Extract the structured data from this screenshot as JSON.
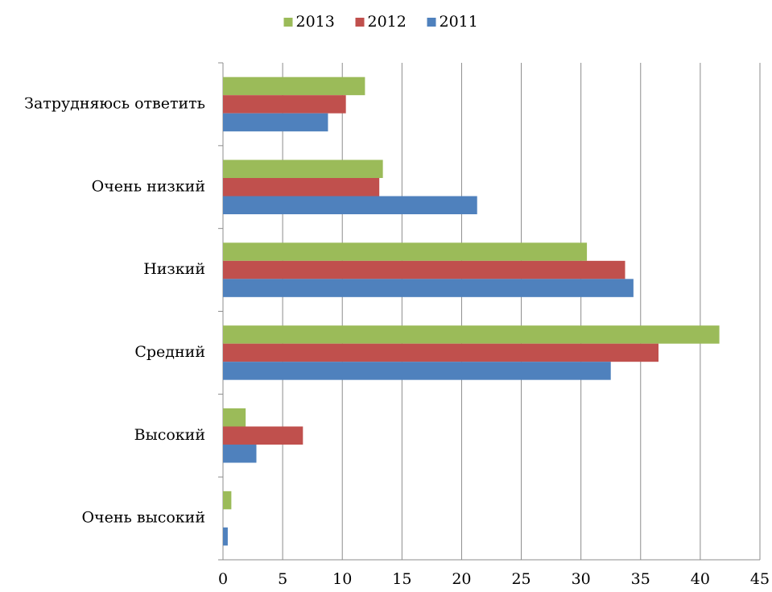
{
  "chart_data": {
    "type": "bar",
    "orientation": "horizontal",
    "categories": [
      "Затрудняюсь ответить",
      "Очень низкий",
      "Низкий",
      "Средний",
      "Высокий",
      "Очень высокий"
    ],
    "series": [
      {
        "name": "2013",
        "color": "#9bbb59",
        "values": [
          11.9,
          13.4,
          30.5,
          41.6,
          1.9,
          0.7
        ]
      },
      {
        "name": "2012",
        "color": "#c0504d",
        "values": [
          10.3,
          13.1,
          33.7,
          36.5,
          6.7,
          0
        ]
      },
      {
        "name": "2011",
        "color": "#4f81bd",
        "values": [
          8.8,
          21.3,
          34.4,
          32.5,
          2.8,
          0.4
        ]
      }
    ],
    "xlim": [
      0,
      45
    ],
    "xticks": [
      0,
      5,
      10,
      15,
      20,
      25,
      30,
      35,
      40,
      45
    ],
    "grid": true,
    "legend": "top"
  }
}
